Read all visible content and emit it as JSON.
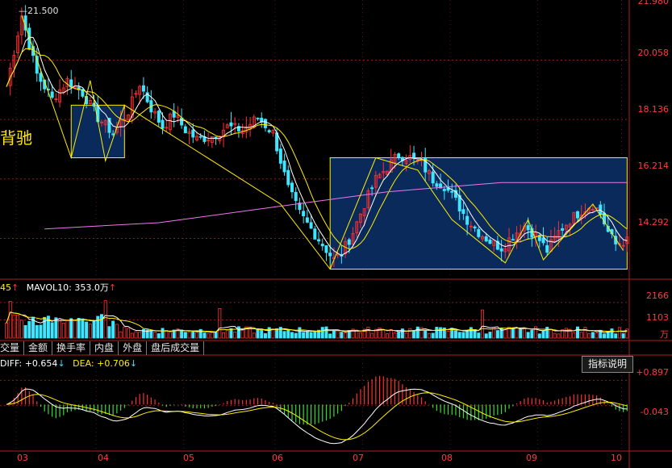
{
  "price_panel": {
    "max_label": "21.500",
    "yellow_text": "背驰",
    "y_ticks": [
      "20.058",
      "18.136",
      "16.214",
      "14.292"
    ],
    "top_tick": "21.980"
  },
  "volume_panel": {
    "legend_prefix": "45",
    "legend_ma10": "MAVOL10: 353.0万",
    "y_ticks": [
      "2166",
      "1103"
    ],
    "unit": "万"
  },
  "tabs": [
    "交量",
    "金额",
    "换手率",
    "内盘",
    "外盘",
    "盘后成交量"
  ],
  "macd_panel": {
    "diff_label": "DIFF: +0.654",
    "dea_label": "DEA: +0.706",
    "indicator_button": "指标说明",
    "y_ticks": [
      "+0.897",
      "-0.043"
    ]
  },
  "x_axis": [
    "03",
    "04",
    "05",
    "06",
    "07",
    "08",
    "09",
    "10"
  ],
  "colors": {
    "up": "#ff3030",
    "down": "#3ee6ff",
    "ma_white": "#ffffff",
    "ma_yellow": "#ffee00",
    "ma_long": "#ee77ee",
    "box_fill": "#0a2a5c",
    "box_border": "#ffee00",
    "grid": "#8a1c1c"
  },
  "chart_data": {
    "type": "candlestick",
    "x_labels": [
      "03",
      "04",
      "05",
      "06",
      "07",
      "08",
      "09",
      "10"
    ],
    "price_ylim": [
      13.0,
      22.0
    ],
    "price_ticks": [
      20.058,
      18.136,
      16.214,
      14.292
    ],
    "max_value": 21.5,
    "close_path": [
      [
        0,
        19.2
      ],
      [
        4,
        21.5
      ],
      [
        8,
        19.6
      ],
      [
        12,
        18.8
      ],
      [
        16,
        19.4
      ],
      [
        20,
        19.0
      ],
      [
        24,
        18.2
      ],
      [
        28,
        17.7
      ],
      [
        32,
        18.4
      ],
      [
        35,
        19.3
      ],
      [
        38,
        18.5
      ],
      [
        41,
        17.9
      ],
      [
        44,
        18.3
      ],
      [
        47,
        17.8
      ],
      [
        50,
        17.5
      ],
      [
        54,
        17.6
      ],
      [
        58,
        17.9
      ],
      [
        62,
        17.8
      ],
      [
        66,
        18.2
      ],
      [
        70,
        17.7
      ],
      [
        72,
        16.8
      ],
      [
        74,
        15.9
      ],
      [
        77,
        15.1
      ],
      [
        80,
        14.6
      ],
      [
        83,
        14.1
      ],
      [
        86,
        13.6
      ],
      [
        88,
        13.8
      ],
      [
        91,
        14.5
      ],
      [
        94,
        15.4
      ],
      [
        97,
        16.2
      ],
      [
        100,
        16.6
      ],
      [
        103,
        17.0
      ],
      [
        106,
        16.9
      ],
      [
        109,
        16.7
      ],
      [
        112,
        16.2
      ],
      [
        115,
        16.0
      ],
      [
        118,
        15.5
      ],
      [
        121,
        14.9
      ],
      [
        124,
        14.5
      ],
      [
        127,
        14.2
      ],
      [
        130,
        14.0
      ],
      [
        133,
        14.4
      ],
      [
        136,
        14.7
      ],
      [
        139,
        14.4
      ],
      [
        142,
        13.9
      ],
      [
        145,
        14.5
      ],
      [
        148,
        14.9
      ],
      [
        151,
        15.2
      ],
      [
        154,
        15.4
      ],
      [
        156,
        15.1
      ],
      [
        158,
        14.5
      ],
      [
        160,
        14.1
      ],
      [
        162,
        14.2
      ]
    ],
    "zigzag": [
      [
        4,
        21.5
      ],
      [
        17,
        16.9
      ],
      [
        22,
        19.4
      ],
      [
        26,
        16.8
      ],
      [
        31,
        18.6
      ],
      [
        72,
        15.4
      ],
      [
        85,
        13.3
      ],
      [
        97,
        16.9
      ],
      [
        108,
        16.5
      ],
      [
        117,
        14.9
      ],
      [
        131,
        13.5
      ],
      [
        137,
        14.9
      ],
      [
        141,
        13.6
      ],
      [
        154,
        15.4
      ],
      [
        162,
        13.9
      ]
    ],
    "ma_long_path": [
      [
        10,
        14.6
      ],
      [
        40,
        14.8
      ],
      [
        70,
        15.3
      ],
      [
        100,
        15.8
      ],
      [
        130,
        16.1
      ],
      [
        163,
        16.1
      ]
    ],
    "boxes": [
      {
        "from": 17,
        "to": 31,
        "low": 16.9,
        "high": 18.6
      },
      {
        "from": 85,
        "to": 163,
        "low": 13.3,
        "high": 16.9
      }
    ],
    "volume_ylim": [
      0,
      2800
    ],
    "volume_ticks": [
      2166,
      1103
    ],
    "macd_ylim": [
      -1.7,
      1.3
    ],
    "macd_ticks": [
      0.897,
      -0.043
    ],
    "macd_diff_last": 0.654,
    "macd_dea_last": 0.706
  }
}
